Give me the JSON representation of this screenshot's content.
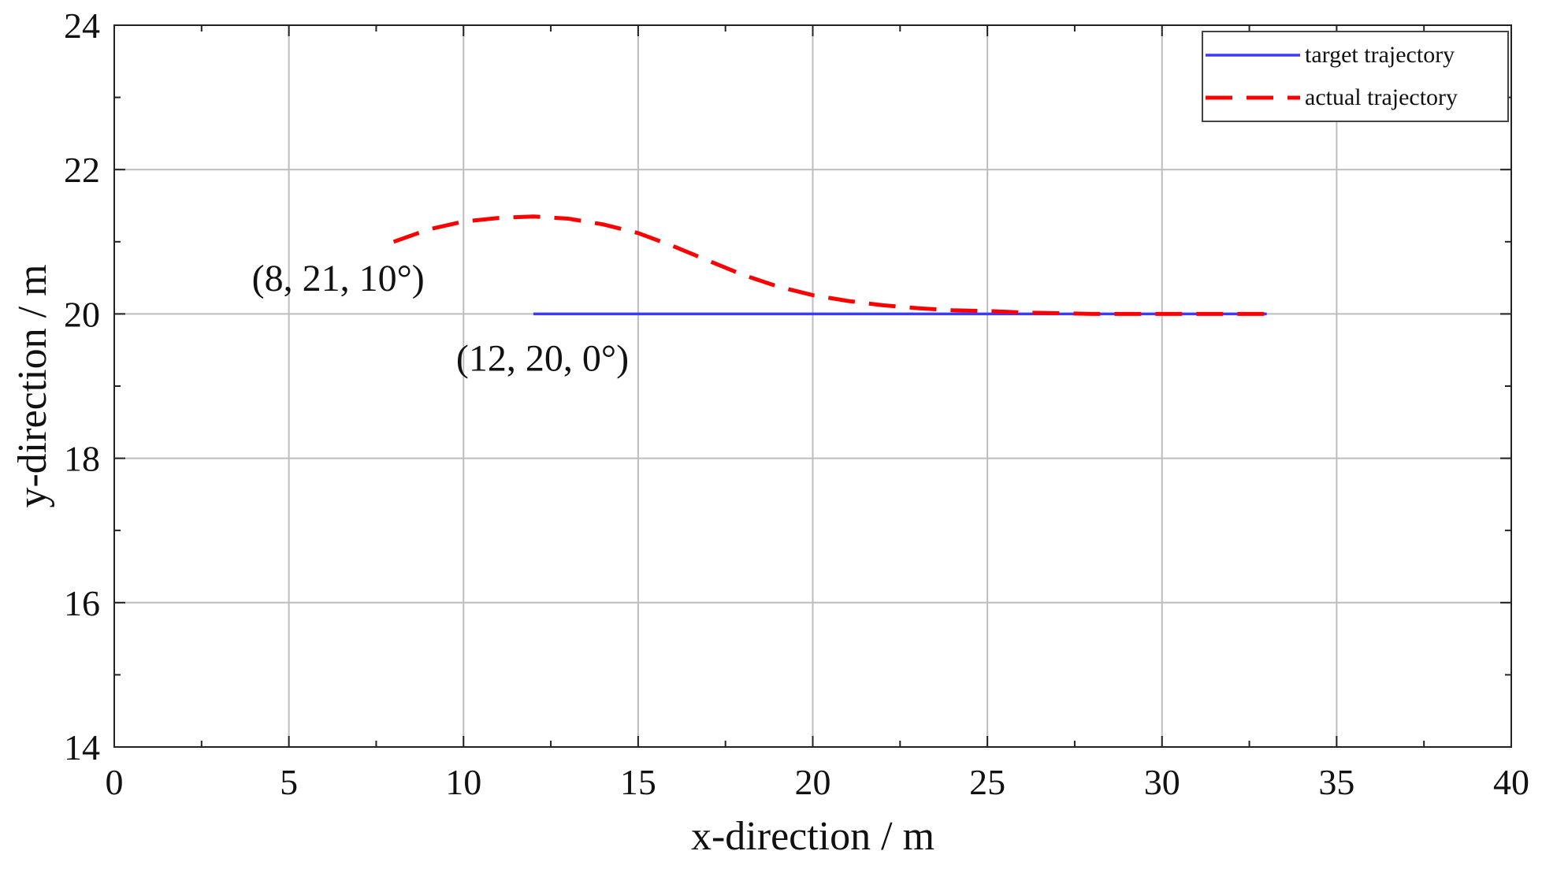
{
  "chart_data": {
    "type": "line",
    "title": "",
    "xlabel": "x-direction / m",
    "ylabel": "y-direction / m",
    "xlim": [
      0,
      40
    ],
    "ylim": [
      14,
      24
    ],
    "x_ticks": [
      0,
      5,
      10,
      15,
      20,
      25,
      30,
      35,
      40
    ],
    "y_ticks": [
      14,
      16,
      18,
      20,
      22,
      24
    ],
    "grid": true,
    "legend_position": "top-right",
    "series": [
      {
        "name": "target trajectory",
        "color": "#3b3bff",
        "style": "solid",
        "points": [
          [
            12,
            20
          ],
          [
            33,
            20
          ]
        ]
      },
      {
        "name": "actual trajectory",
        "color": "#ff0000",
        "style": "dashed",
        "points": [
          [
            8,
            21.0
          ],
          [
            9,
            21.17
          ],
          [
            10,
            21.28
          ],
          [
            11,
            21.33
          ],
          [
            12,
            21.35
          ],
          [
            13,
            21.32
          ],
          [
            14,
            21.24
          ],
          [
            15,
            21.12
          ],
          [
            16,
            20.94
          ],
          [
            17,
            20.74
          ],
          [
            18,
            20.54
          ],
          [
            19,
            20.38
          ],
          [
            20,
            20.26
          ],
          [
            21,
            20.18
          ],
          [
            22,
            20.12
          ],
          [
            23,
            20.08
          ],
          [
            24,
            20.05
          ],
          [
            25,
            20.04
          ],
          [
            26,
            20.02
          ],
          [
            27,
            20.01
          ],
          [
            28,
            20.0
          ],
          [
            29,
            20.0
          ],
          [
            30,
            20.0
          ],
          [
            31,
            20.0
          ],
          [
            32,
            20.0
          ],
          [
            33,
            20.0
          ]
        ]
      }
    ],
    "annotations": [
      {
        "text": "(8, 21, 10°)",
        "x": 8,
        "y": 21
      },
      {
        "text": "(12, 20, 0°)",
        "x": 12,
        "y": 20
      }
    ]
  }
}
